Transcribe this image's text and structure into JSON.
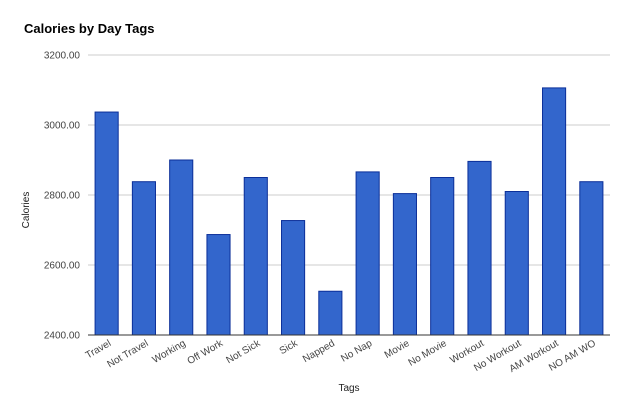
{
  "chart_data": {
    "type": "bar",
    "title": "Calories by Day Tags",
    "xlabel": "Tags",
    "ylabel": "Calories",
    "ylim": [
      2400,
      3200
    ],
    "yticks": [
      2400,
      2600,
      2800,
      3000,
      3200
    ],
    "ytick_labels": [
      "2400.00",
      "2600.00",
      "2800.00",
      "3000.00",
      "3200.00"
    ],
    "grid": true,
    "legend": "none",
    "bar_color": "#3366cc",
    "categories": [
      "Travel",
      "Not Travel",
      "Working",
      "Off Work",
      "Not Sick",
      "Sick",
      "Napped",
      "No Nap",
      "Movie",
      "No Movie",
      "Workout",
      "No Workout",
      "AM Workout",
      "NO AM WO"
    ],
    "values": [
      3037,
      2838,
      2900,
      2687,
      2850,
      2727,
      2525,
      2866,
      2804,
      2850,
      2896,
      2810,
      3106,
      2838
    ]
  }
}
